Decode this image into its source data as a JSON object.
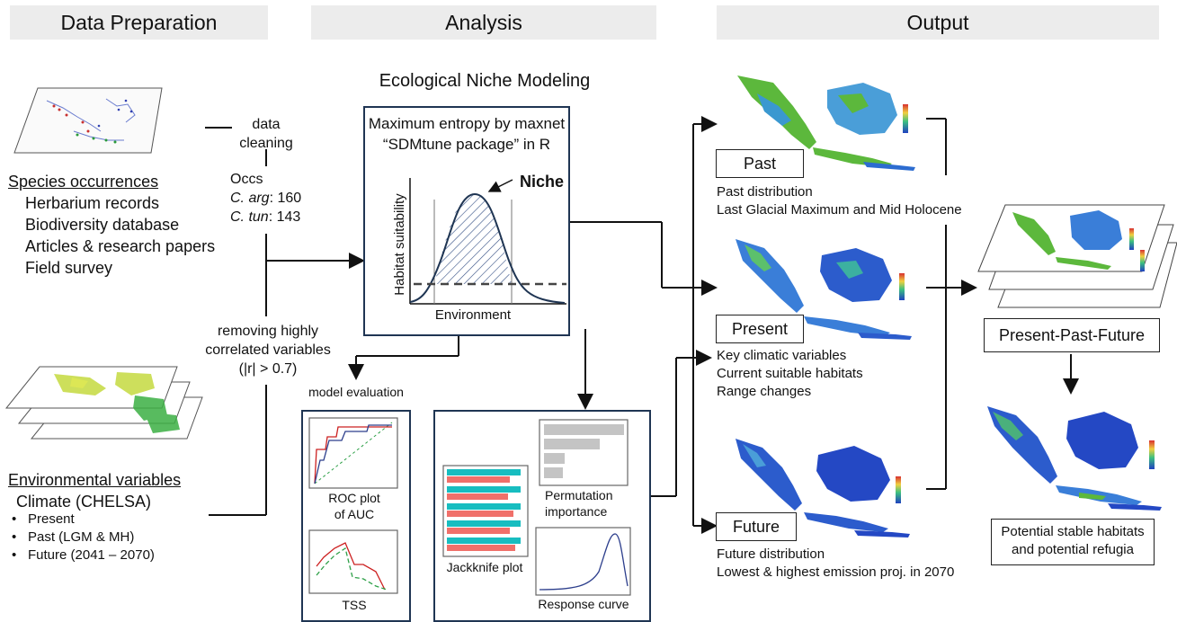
{
  "headers": {
    "data_preparation": "Data Preparation",
    "analysis": "Analysis",
    "output": "Output"
  },
  "data_prep": {
    "cleaning_line1": "data",
    "cleaning_line2": "cleaning",
    "occs_title": "Occs",
    "occs_1_species": "C. arg",
    "occs_1_count": ": 160",
    "occs_2_species": "C. tun",
    "occs_2_count": ": 143",
    "species_title": "Species occurrences",
    "species_sources": [
      "Herbarium records",
      "Biodiversity database",
      "Articles & research papers",
      "Field survey"
    ],
    "correlation_line1": "removing highly",
    "correlation_line2": "correlated variables",
    "correlation_line3": "(|r| > 0.7)",
    "env_title": "Environmental variables",
    "env_subtitle": "Climate (CHELSA)",
    "env_items": [
      "Present",
      "Past (LGM & MH)",
      "Future (2041 – 2070)"
    ]
  },
  "analysis": {
    "enm_title": "Ecological Niche Modeling",
    "maxent_line1": "Maximum entropy by maxnet",
    "maxent_line2": "“SDMtune package” in R",
    "niche_label": "Niche",
    "y_axis_label": "Habitat suitability",
    "x_axis_label": "Environment",
    "model_eval_label": "model evaluation",
    "roc_line1": "ROC plot",
    "roc_line2": "of AUC",
    "tss_label": "TSS",
    "jackknife_label": "Jackknife plot",
    "permutation_line1": "Permutation",
    "permutation_line2": "importance",
    "response_label": "Response curve"
  },
  "output": {
    "past_label": "Past",
    "past_desc_line1": "Past distribution",
    "past_desc_line2": "Last Glacial Maximum and Mid Holocene",
    "present_label": "Present",
    "present_desc": [
      "Key climatic variables",
      "Current suitable habitats",
      "Range changes"
    ],
    "future_label": "Future",
    "future_desc_line1": "Future distribution",
    "future_desc_line2": "Lowest & highest emission proj. in 2070",
    "combined_label": "Present-Past-Future",
    "final_line1": "Potential stable habitats",
    "final_line2": "and potential refugia"
  },
  "colors": {
    "box_border": "#1f3553",
    "header_bg": "#ececec",
    "bar_teal": "#17bdc0",
    "bar_salmon": "#f0706a",
    "bar_gray": "#c4c4c4",
    "curve_blue": "#2c3e8c",
    "line_red": "#cc2020",
    "line_green": "#2ea048"
  }
}
